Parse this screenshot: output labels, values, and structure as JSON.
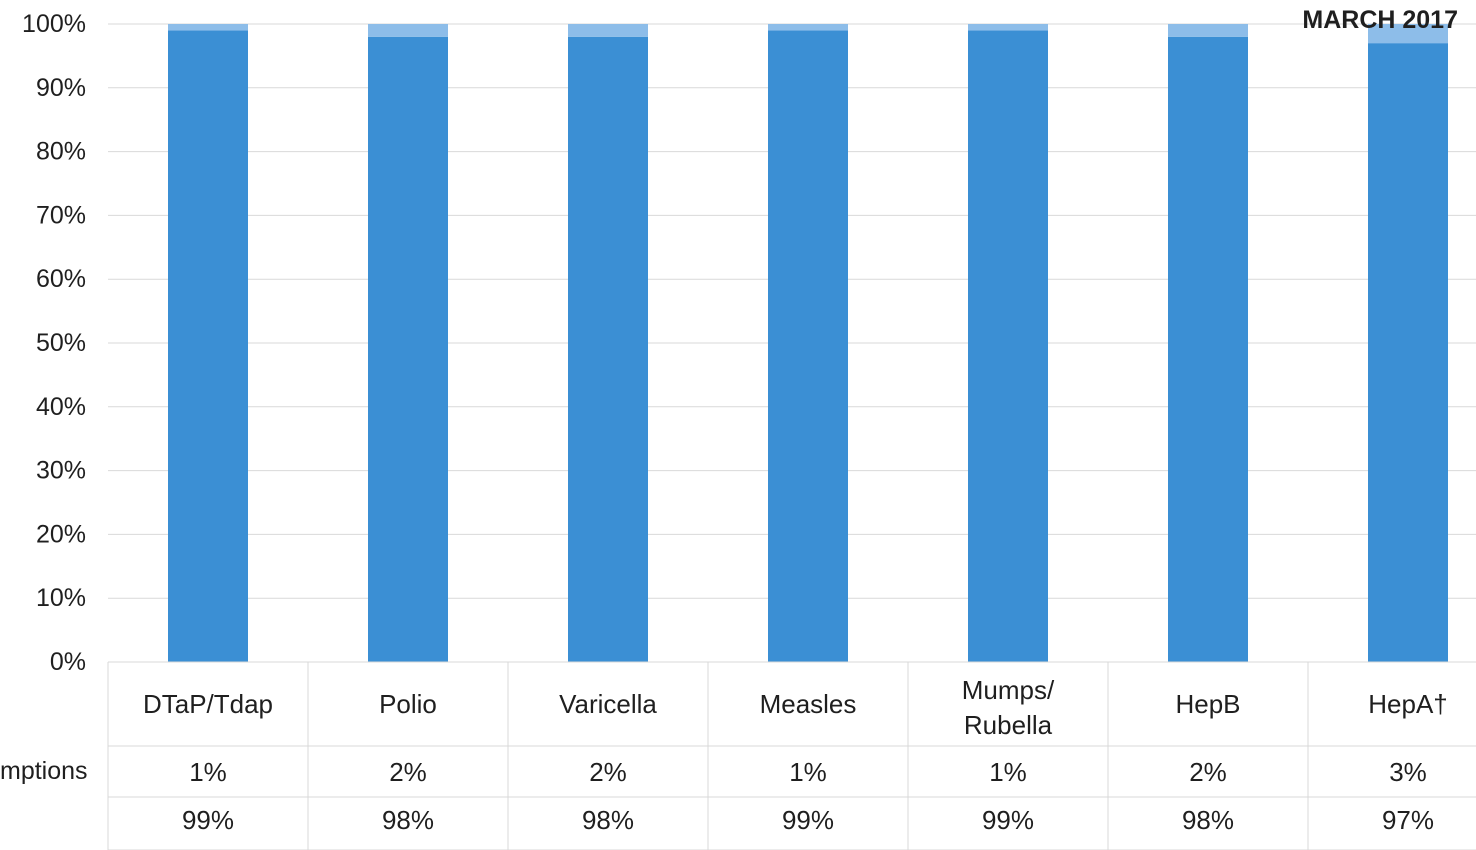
{
  "chart_data": {
    "type": "bar",
    "stacked": true,
    "title": "MARCH 2017",
    "categories": [
      "DTaP/Tdap",
      "Polio",
      "Varicella",
      "Measles",
      "Mumps/ Rubella",
      "HepB",
      "HepA†"
    ],
    "category_label_lines": [
      [
        "DTaP/Tdap"
      ],
      [
        "Polio"
      ],
      [
        "Varicella"
      ],
      [
        "Measles"
      ],
      [
        "Mumps/",
        "Rubella"
      ],
      [
        "HepB"
      ],
      [
        "HepA†"
      ]
    ],
    "series": [
      {
        "values": [
          99,
          98,
          98,
          99,
          99,
          98,
          97
        ],
        "labels": [
          "99%",
          "98%",
          "98%",
          "99%",
          "99%",
          "98%",
          "97%"
        ],
        "color": "#3b8fd4"
      },
      {
        "name": "mptions",
        "values": [
          1,
          2,
          2,
          1,
          1,
          2,
          3
        ],
        "labels": [
          "1%",
          "2%",
          "2%",
          "1%",
          "1%",
          "2%",
          "3%"
        ],
        "color": "#8dbde9"
      }
    ],
    "yticks": [
      "0%",
      "10%",
      "20%",
      "30%",
      "40%",
      "50%",
      "60%",
      "70%",
      "80%",
      "90%",
      "100%"
    ],
    "ylim": [
      0,
      100
    ],
    "grid": true,
    "legend": "data table below chart"
  }
}
